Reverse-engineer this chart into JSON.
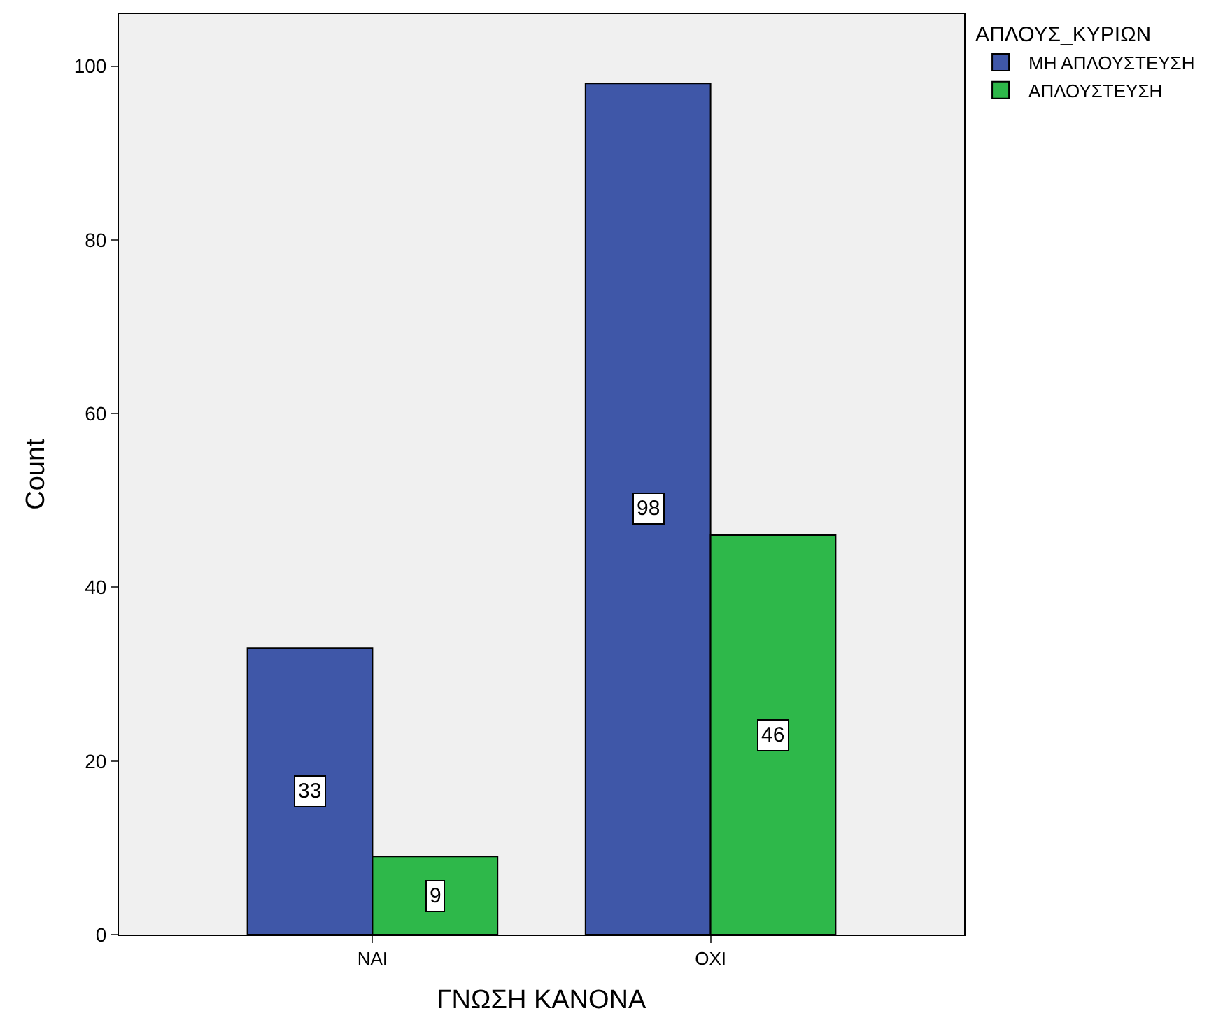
{
  "chart_data": {
    "type": "bar",
    "xlabel": "ΓΝΩΣΗ ΚΑΝΟΝΑ",
    "ylabel": "Count",
    "legend_title": "ΑΠΛΟΥΣ_ΚΥΡΙΩΝ",
    "categories": [
      "ΝΑΙ",
      "ΟΧΙ"
    ],
    "series": [
      {
        "name": "ΜΗ ΑΠΛΟΥΣΤΕΥΣΗ",
        "color": "#3f57a8",
        "values": [
          33,
          98
        ]
      },
      {
        "name": "ΑΠΛΟΥΣΤΕΥΣΗ",
        "color": "#2eb84a",
        "values": [
          9,
          46
        ]
      }
    ],
    "ylim": [
      0,
      106
    ],
    "yticks": [
      0,
      20,
      40,
      60,
      80,
      100
    ],
    "data_labels": true,
    "grid": false,
    "legend": "top right"
  }
}
